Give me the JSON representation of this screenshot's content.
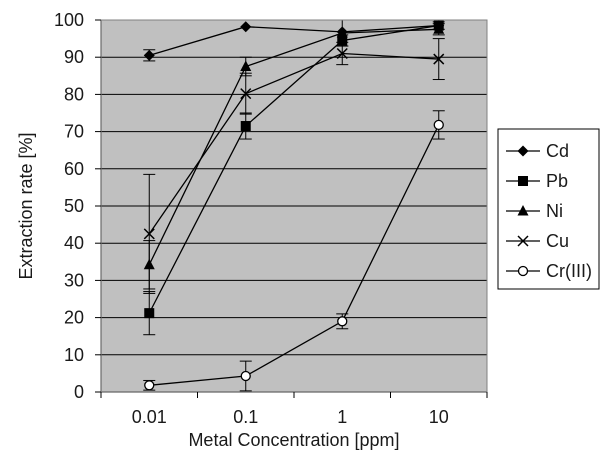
{
  "chart_data": {
    "type": "line",
    "title": "",
    "xlabel": "Metal Concentration [ppm]",
    "ylabel": "Extraction rate [%]",
    "xscale": "log",
    "categories": [
      "0.01",
      "0.1",
      "1",
      "10"
    ],
    "x": [
      0.01,
      0.1,
      1,
      10
    ],
    "ylim": [
      0,
      100
    ],
    "yticks": [
      0,
      10,
      20,
      30,
      40,
      50,
      60,
      70,
      80,
      90,
      100
    ],
    "grid": "horizontal",
    "legend_position": "right",
    "plot_background": "#c0c0c0",
    "series": [
      {
        "name": "Cd",
        "marker": "diamond",
        "values": [
          90.5,
          98.2,
          96.8,
          98.5
        ],
        "errors": [
          1.5,
          0,
          0,
          0
        ]
      },
      {
        "name": "Pb",
        "marker": "square",
        "values": [
          21.2,
          71.5,
          94.5,
          98.5
        ],
        "errors": [
          5.8,
          3.5,
          1.5,
          1.0
        ]
      },
      {
        "name": "Ni",
        "marker": "triangle",
        "values": [
          34.2,
          87.5,
          96.5,
          97.5
        ],
        "errors": [
          6.5,
          2.5,
          3.5,
          1.5
        ]
      },
      {
        "name": "Cu",
        "marker": "cross",
        "values": [
          42.5,
          80.2,
          91.0,
          89.5
        ],
        "errors": [
          16.0,
          5.5,
          3.0,
          5.5
        ]
      },
      {
        "name": "Cr(III)",
        "marker": "circle",
        "values": [
          1.8,
          4.3,
          19.0,
          71.8
        ],
        "errors": [
          1.3,
          4.0,
          2.0,
          3.8
        ]
      }
    ]
  }
}
